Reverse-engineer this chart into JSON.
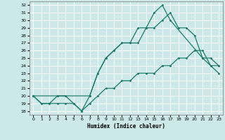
{
  "title": "",
  "xlabel": "Humidex (Indice chaleur)",
  "background_color": "#cce8e8",
  "line_color": "#1a7a6a",
  "xlim": [
    -0.5,
    23.5
  ],
  "ylim": [
    17.5,
    32.5
  ],
  "xticks": [
    0,
    1,
    2,
    3,
    4,
    5,
    6,
    7,
    8,
    9,
    10,
    11,
    12,
    13,
    14,
    15,
    16,
    17,
    18,
    19,
    20,
    21,
    22,
    23
  ],
  "yticks": [
    18,
    19,
    20,
    21,
    22,
    23,
    24,
    25,
    26,
    27,
    28,
    29,
    30,
    31,
    32
  ],
  "line1_x": [
    0,
    1,
    2,
    3,
    4,
    5,
    6,
    7,
    8,
    9,
    10,
    11,
    12,
    13,
    14,
    15,
    16,
    17,
    18,
    19,
    20,
    21,
    22,
    23
  ],
  "line1_y": [
    20,
    19,
    19,
    20,
    20,
    19,
    18,
    20,
    23,
    25,
    26,
    27,
    27,
    29,
    29,
    29,
    30,
    31,
    29,
    29,
    28,
    25,
    24,
    23
  ],
  "line2_x": [
    0,
    1,
    2,
    3,
    4,
    5,
    6,
    7,
    8,
    9,
    10,
    11,
    12,
    13,
    14,
    15,
    16,
    17,
    18,
    19,
    20,
    21,
    22,
    23
  ],
  "line2_y": [
    20,
    19,
    19,
    19,
    19,
    19,
    18,
    19,
    20,
    21,
    21,
    22,
    22,
    23,
    23,
    23,
    24,
    24,
    25,
    25,
    26,
    26,
    24,
    24
  ],
  "line3_x": [
    0,
    3,
    7,
    8,
    9,
    10,
    11,
    12,
    13,
    14,
    15,
    16,
    17,
    21,
    22,
    23
  ],
  "line3_y": [
    20,
    20,
    20,
    23,
    25,
    26,
    27,
    27,
    27,
    29,
    31,
    32,
    30,
    25,
    25,
    24
  ]
}
